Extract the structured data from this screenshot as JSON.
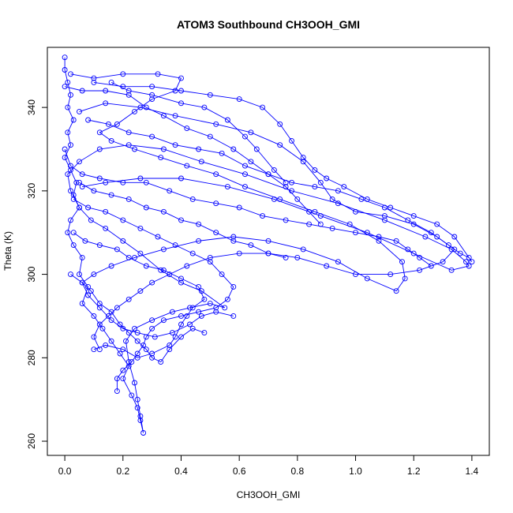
{
  "chart_data": {
    "type": "scatter",
    "title": "ATOM3 Southbound CH3OOH_GMI",
    "xlabel": "CH3OOH_GMI",
    "ylabel": "Theta (K)",
    "xlim": [
      -0.06,
      1.46
    ],
    "ylim": [
      256.6,
      354.4
    ],
    "x_ticks": [
      0.0,
      0.2,
      0.4,
      0.6,
      0.8,
      1.0,
      1.2,
      1.4
    ],
    "x_tick_labels": [
      "0.0",
      "0.2",
      "0.4",
      "0.6",
      "0.8",
      "1.0",
      "1.2",
      "1.4"
    ],
    "y_ticks": [
      260,
      280,
      300,
      320,
      340
    ],
    "y_tick_labels": [
      "260",
      "280",
      "300",
      "320",
      "340"
    ],
    "grid": false,
    "legend": "none",
    "marker": "open-circle",
    "connected": true,
    "color": "#0000ff",
    "series": [
      {
        "points": [
          [
            0.0,
            352
          ],
          [
            0.0,
            349
          ],
          [
            0.01,
            346
          ],
          [
            0.02,
            343
          ],
          [
            0.01,
            340
          ],
          [
            0.03,
            337
          ],
          [
            0.01,
            334
          ],
          [
            0.02,
            331
          ],
          [
            0.0,
            328
          ],
          [
            0.02,
            325
          ],
          [
            0.04,
            322
          ],
          [
            0.03,
            319
          ],
          [
            0.05,
            316
          ],
          [
            0.02,
            313
          ],
          [
            0.01,
            310
          ],
          [
            0.03,
            307
          ],
          [
            0.06,
            304
          ],
          [
            0.05,
            300
          ],
          [
            0.08,
            297
          ],
          [
            0.06,
            293
          ],
          [
            0.1,
            290
          ],
          [
            0.13,
            287
          ],
          [
            0.16,
            284
          ],
          [
            0.19,
            281
          ],
          [
            0.22,
            278
          ],
          [
            0.2,
            275
          ],
          [
            0.23,
            271
          ],
          [
            0.25,
            268
          ],
          [
            0.26,
            265
          ],
          [
            0.27,
            262
          ],
          [
            0.26,
            266
          ],
          [
            0.25,
            270
          ],
          [
            0.24,
            274
          ],
          [
            0.22,
            279
          ],
          [
            0.21,
            284
          ],
          [
            0.24,
            287
          ],
          [
            0.3,
            289
          ],
          [
            0.37,
            291
          ],
          [
            0.43,
            292
          ],
          [
            0.5,
            293
          ],
          [
            0.55,
            292
          ],
          [
            0.47,
            296
          ],
          [
            0.4,
            298
          ],
          [
            0.33,
            301
          ],
          [
            0.26,
            305
          ],
          [
            0.2,
            308
          ],
          [
            0.14,
            311
          ],
          [
            0.09,
            313
          ],
          [
            0.05,
            316
          ],
          [
            0.02,
            320
          ],
          [
            0.01,
            324
          ],
          [
            0.05,
            327
          ],
          [
            0.12,
            330
          ],
          [
            0.22,
            331
          ],
          [
            0.34,
            330
          ],
          [
            0.47,
            327
          ],
          [
            0.62,
            324
          ],
          [
            0.78,
            320
          ],
          [
            0.94,
            317
          ],
          [
            1.1,
            313
          ],
          [
            1.24,
            309
          ],
          [
            1.33,
            306
          ],
          [
            1.38,
            303
          ],
          [
            1.39,
            302
          ],
          [
            1.33,
            301
          ],
          [
            1.2,
            305
          ],
          [
            1.04,
            310
          ],
          [
            0.88,
            314
          ],
          [
            0.72,
            318
          ],
          [
            0.56,
            321
          ],
          [
            0.4,
            323
          ],
          [
            0.26,
            323
          ],
          [
            0.14,
            322
          ],
          [
            0.06,
            321
          ]
        ]
      },
      {
        "points": [
          [
            0.02,
            348
          ],
          [
            0.1,
            347
          ],
          [
            0.2,
            348
          ],
          [
            0.32,
            348
          ],
          [
            0.4,
            347
          ],
          [
            0.38,
            344
          ],
          [
            0.3,
            342
          ],
          [
            0.24,
            339
          ],
          [
            0.18,
            336
          ],
          [
            0.12,
            334
          ],
          [
            0.16,
            332
          ],
          [
            0.24,
            330
          ],
          [
            0.33,
            328
          ],
          [
            0.42,
            326
          ],
          [
            0.52,
            324
          ],
          [
            0.62,
            321
          ],
          [
            0.74,
            318
          ],
          [
            0.86,
            315
          ],
          [
            0.98,
            312
          ],
          [
            1.08,
            308
          ],
          [
            1.16,
            303
          ],
          [
            1.17,
            299
          ],
          [
            1.14,
            296
          ],
          [
            1.04,
            299
          ],
          [
            0.94,
            303
          ],
          [
            0.82,
            306
          ],
          [
            0.7,
            308
          ],
          [
            0.58,
            309
          ],
          [
            0.46,
            308
          ],
          [
            0.34,
            306
          ],
          [
            0.24,
            304
          ],
          [
            0.16,
            302
          ],
          [
            0.1,
            300
          ],
          [
            0.06,
            298
          ],
          [
            0.08,
            295
          ],
          [
            0.12,
            292
          ],
          [
            0.16,
            289
          ],
          [
            0.2,
            287
          ],
          [
            0.25,
            286
          ],
          [
            0.31,
            285
          ],
          [
            0.37,
            286
          ],
          [
            0.43,
            288
          ],
          [
            0.47,
            290
          ],
          [
            0.52,
            291
          ],
          [
            0.58,
            290
          ]
        ]
      },
      {
        "points": [
          [
            0.05,
            339
          ],
          [
            0.14,
            341
          ],
          [
            0.26,
            340
          ],
          [
            0.38,
            338
          ],
          [
            0.52,
            336
          ],
          [
            0.64,
            334
          ],
          [
            0.74,
            331
          ],
          [
            0.82,
            327
          ],
          [
            0.88,
            322
          ],
          [
            0.92,
            318
          ],
          [
            1.0,
            315
          ],
          [
            1.1,
            314
          ],
          [
            1.2,
            312
          ],
          [
            1.28,
            309
          ],
          [
            1.34,
            306
          ],
          [
            1.3,
            303
          ],
          [
            1.22,
            301
          ],
          [
            1.12,
            300
          ],
          [
            1.0,
            300
          ],
          [
            0.9,
            302
          ],
          [
            0.8,
            304
          ],
          [
            0.7,
            305
          ],
          [
            0.6,
            305
          ],
          [
            0.5,
            304
          ],
          [
            0.42,
            302
          ],
          [
            0.36,
            300
          ],
          [
            0.3,
            298
          ],
          [
            0.26,
            296
          ],
          [
            0.22,
            294
          ],
          [
            0.18,
            292
          ],
          [
            0.15,
            290
          ],
          [
            0.12,
            288
          ],
          [
            0.1,
            285
          ],
          [
            0.12,
            282
          ]
        ]
      },
      {
        "points": [
          [
            0.08,
            337
          ],
          [
            0.15,
            336
          ],
          [
            0.22,
            334
          ],
          [
            0.3,
            333
          ],
          [
            0.38,
            331
          ],
          [
            0.46,
            330
          ],
          [
            0.54,
            329
          ],
          [
            0.62,
            326
          ],
          [
            0.7,
            324
          ],
          [
            0.78,
            322
          ],
          [
            0.86,
            321
          ],
          [
            0.94,
            320
          ],
          [
            1.02,
            318
          ],
          [
            1.1,
            316
          ],
          [
            1.18,
            313
          ],
          [
            1.26,
            310
          ],
          [
            1.32,
            307
          ],
          [
            1.36,
            305
          ],
          [
            1.39,
            304
          ]
        ]
      },
      {
        "points": [
          [
            0.03,
            318
          ],
          [
            0.08,
            316
          ],
          [
            0.14,
            315
          ],
          [
            0.2,
            313
          ],
          [
            0.26,
            311
          ],
          [
            0.32,
            309
          ],
          [
            0.38,
            307
          ],
          [
            0.44,
            305
          ],
          [
            0.5,
            303
          ],
          [
            0.54,
            300
          ],
          [
            0.58,
            297
          ],
          [
            0.56,
            294
          ],
          [
            0.52,
            292
          ],
          [
            0.46,
            291
          ],
          [
            0.4,
            290
          ],
          [
            0.34,
            289
          ],
          [
            0.3,
            287
          ],
          [
            0.28,
            285
          ],
          [
            0.27,
            283
          ],
          [
            0.25,
            281
          ],
          [
            0.23,
            279
          ],
          [
            0.2,
            277
          ],
          [
            0.18,
            275
          ],
          [
            0.18,
            272
          ]
        ]
      },
      {
        "points": [
          [
            0.0,
            330
          ],
          [
            0.02,
            326
          ],
          [
            0.06,
            324
          ],
          [
            0.12,
            323
          ],
          [
            0.2,
            322
          ],
          [
            0.28,
            322
          ],
          [
            0.36,
            320
          ],
          [
            0.44,
            318
          ],
          [
            0.52,
            317
          ],
          [
            0.6,
            316
          ],
          [
            0.68,
            314
          ],
          [
            0.76,
            313
          ],
          [
            0.84,
            312
          ],
          [
            0.92,
            311
          ],
          [
            1.0,
            310
          ],
          [
            1.08,
            309
          ],
          [
            1.14,
            308
          ],
          [
            1.18,
            306
          ],
          [
            1.22,
            304
          ],
          [
            1.26,
            302
          ]
        ]
      },
      {
        "points": [
          [
            0.03,
            310
          ],
          [
            0.07,
            308
          ],
          [
            0.12,
            307
          ],
          [
            0.18,
            306
          ],
          [
            0.22,
            304
          ],
          [
            0.28,
            302
          ],
          [
            0.34,
            301
          ],
          [
            0.4,
            299
          ],
          [
            0.46,
            297
          ],
          [
            0.48,
            294
          ],
          [
            0.44,
            292
          ],
          [
            0.42,
            290
          ],
          [
            0.4,
            288
          ],
          [
            0.38,
            285
          ],
          [
            0.36,
            283
          ],
          [
            0.3,
            281
          ],
          [
            0.25,
            280
          ],
          [
            0.2,
            282
          ],
          [
            0.14,
            283
          ],
          [
            0.1,
            282
          ]
        ]
      },
      {
        "points": [
          [
            0.0,
            345
          ],
          [
            0.06,
            344
          ],
          [
            0.14,
            344
          ],
          [
            0.22,
            343
          ],
          [
            0.28,
            340
          ],
          [
            0.34,
            338
          ],
          [
            0.42,
            335
          ],
          [
            0.5,
            333
          ],
          [
            0.58,
            330
          ],
          [
            0.64,
            327
          ],
          [
            0.7,
            324
          ],
          [
            0.76,
            321
          ],
          [
            0.8,
            318
          ],
          [
            0.84,
            315
          ],
          [
            0.88,
            312
          ]
        ]
      },
      {
        "points": [
          [
            0.16,
            346
          ],
          [
            0.22,
            344
          ],
          [
            0.3,
            343
          ],
          [
            0.4,
            341
          ],
          [
            0.48,
            340
          ],
          [
            0.56,
            337
          ],
          [
            0.62,
            333
          ],
          [
            0.66,
            330
          ],
          [
            0.72,
            325
          ],
          [
            0.76,
            322
          ]
        ]
      },
      {
        "points": [
          [
            0.05,
            322
          ],
          [
            0.1,
            320
          ],
          [
            0.16,
            319
          ],
          [
            0.22,
            318
          ],
          [
            0.28,
            316
          ],
          [
            0.34,
            315
          ],
          [
            0.4,
            313
          ],
          [
            0.46,
            312
          ],
          [
            0.52,
            310
          ],
          [
            0.58,
            308
          ],
          [
            0.64,
            307
          ],
          [
            0.7,
            305
          ],
          [
            0.76,
            304
          ]
        ]
      },
      {
        "points": [
          [
            0.02,
            300
          ],
          [
            0.06,
            298
          ],
          [
            0.09,
            296
          ],
          [
            0.12,
            293
          ],
          [
            0.16,
            291
          ],
          [
            0.19,
            288
          ],
          [
            0.22,
            286
          ],
          [
            0.25,
            284
          ],
          [
            0.28,
            282
          ],
          [
            0.3,
            280
          ],
          [
            0.33,
            279
          ],
          [
            0.36,
            282
          ],
          [
            0.4,
            285
          ],
          [
            0.44,
            287
          ],
          [
            0.48,
            286
          ]
        ]
      },
      {
        "points": [
          [
            0.1,
            346
          ],
          [
            0.2,
            345
          ],
          [
            0.3,
            345
          ],
          [
            0.4,
            344
          ],
          [
            0.5,
            343
          ],
          [
            0.6,
            342
          ],
          [
            0.68,
            340
          ],
          [
            0.74,
            336
          ],
          [
            0.78,
            332
          ],
          [
            0.82,
            328
          ],
          [
            0.86,
            325
          ],
          [
            0.9,
            323
          ],
          [
            0.96,
            321
          ],
          [
            1.04,
            318
          ],
          [
            1.12,
            316
          ],
          [
            1.2,
            314
          ],
          [
            1.28,
            312
          ],
          [
            1.34,
            309
          ],
          [
            1.4,
            303
          ]
        ]
      }
    ]
  }
}
